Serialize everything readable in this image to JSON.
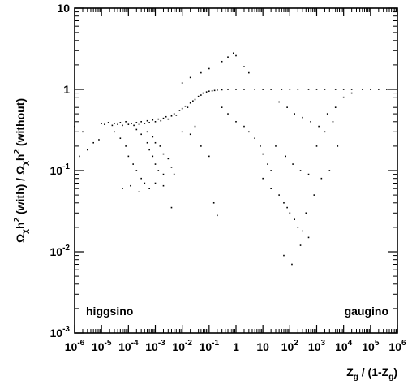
{
  "chart_data": {
    "type": "scatter",
    "x_scale": "log",
    "y_scale": "log",
    "xlim": [
      1e-06,
      1000000.0
    ],
    "ylim": [
      0.001,
      10
    ],
    "grid": false,
    "x_ticks": [
      {
        "value": 1e-06,
        "base": "10",
        "exp": "-6"
      },
      {
        "value": 1e-05,
        "base": "10",
        "exp": "-5"
      },
      {
        "value": 0.0001,
        "base": "10",
        "exp": "-4"
      },
      {
        "value": 0.001,
        "base": "10",
        "exp": "-3"
      },
      {
        "value": 0.01,
        "base": "10",
        "exp": "-2"
      },
      {
        "value": 0.1,
        "base": "10",
        "exp": "-1"
      },
      {
        "value": 1,
        "base": "1",
        "exp": ""
      },
      {
        "value": 10,
        "base": "10",
        "exp": ""
      },
      {
        "value": 100,
        "base": "10",
        "exp": "2"
      },
      {
        "value": 1000,
        "base": "10",
        "exp": "3"
      },
      {
        "value": 10000,
        "base": "10",
        "exp": "4"
      },
      {
        "value": 100000,
        "base": "10",
        "exp": "5"
      },
      {
        "value": 1000000,
        "base": "10",
        "exp": "6"
      }
    ],
    "y_ticks": [
      {
        "value": 0.001,
        "base": "10",
        "exp": "-3"
      },
      {
        "value": 0.01,
        "base": "10",
        "exp": "-2"
      },
      {
        "value": 0.1,
        "base": "10",
        "exp": "-1"
      },
      {
        "value": 1,
        "base": "1",
        "exp": ""
      },
      {
        "value": 10,
        "base": "10",
        "exp": ""
      }
    ],
    "xlabel": {
      "a": "Z",
      "a_sub": "g",
      "b": " / (1-Z",
      "b_sub": "g",
      "c": ")"
    },
    "ylabel": {
      "p1": "Ω",
      "p1_sub": "χ",
      "p2": "h",
      "p2_sup": "2",
      "p3": " (with) / Ω",
      "p3_sub": "χ",
      "p4": "h",
      "p4_sup": "2",
      "p5": " (without)"
    },
    "annotations": {
      "left": "higgsino",
      "right": "gaugino"
    },
    "colors": {
      "points": "#000000",
      "frame": "#000000"
    },
    "points": [
      [
        1e-05,
        0.38
      ],
      [
        1.3e-05,
        0.37
      ],
      [
        1.8e-05,
        0.39
      ],
      [
        2.5e-05,
        0.36
      ],
      [
        3e-05,
        0.38
      ],
      [
        4e-05,
        0.37
      ],
      [
        5e-05,
        0.39
      ],
      [
        6e-05,
        0.36
      ],
      [
        8e-05,
        0.4
      ],
      [
        0.0001,
        0.37
      ],
      [
        0.00013,
        0.38
      ],
      [
        0.00016,
        0.36
      ],
      [
        0.0002,
        0.39
      ],
      [
        0.00025,
        0.37
      ],
      [
        0.0003,
        0.4
      ],
      [
        0.0004,
        0.38
      ],
      [
        0.0005,
        0.41
      ],
      [
        0.0006,
        0.39
      ],
      [
        0.0008,
        0.42
      ],
      [
        0.001,
        0.4
      ],
      [
        0.0013,
        0.43
      ],
      [
        0.0016,
        0.41
      ],
      [
        0.002,
        0.44
      ],
      [
        0.0025,
        0.46
      ],
      [
        0.003,
        0.43
      ],
      [
        0.004,
        0.47
      ],
      [
        0.005,
        0.5
      ],
      [
        0.006,
        0.48
      ],
      [
        0.008,
        0.55
      ],
      [
        0.01,
        0.58
      ],
      [
        0.013,
        0.62
      ],
      [
        0.016,
        0.6
      ],
      [
        0.02,
        0.68
      ],
      [
        0.025,
        0.72
      ],
      [
        0.03,
        0.75
      ],
      [
        0.04,
        0.82
      ],
      [
        0.05,
        0.85
      ],
      [
        0.06,
        0.9
      ],
      [
        0.08,
        0.93
      ],
      [
        0.1,
        0.95
      ],
      [
        0.13,
        0.96
      ],
      [
        0.16,
        0.97
      ],
      [
        0.2,
        0.98
      ],
      [
        0.3,
        0.99
      ],
      [
        0.5,
        1
      ],
      [
        1,
        1
      ],
      [
        2,
        1
      ],
      [
        5,
        1
      ],
      [
        10,
        1
      ],
      [
        20,
        1
      ],
      [
        50,
        1
      ],
      [
        100,
        1
      ],
      [
        200,
        1
      ],
      [
        500,
        1
      ],
      [
        1000,
        1
      ],
      [
        2000,
        1
      ],
      [
        5000,
        1
      ],
      [
        10000,
        1
      ],
      [
        20000,
        1
      ],
      [
        50000,
        1
      ],
      [
        100000,
        1
      ],
      [
        200000,
        1
      ],
      [
        400000,
        1
      ],
      [
        3e-05,
        0.3
      ],
      [
        5e-05,
        0.25
      ],
      [
        8e-05,
        0.2
      ],
      [
        0.0001,
        0.15
      ],
      [
        0.00015,
        0.12
      ],
      [
        0.0002,
        0.1
      ],
      [
        0.0003,
        0.08
      ],
      [
        0.0004,
        0.07
      ],
      [
        0.0002,
        0.32
      ],
      [
        0.0003,
        0.28
      ],
      [
        0.0005,
        0.22
      ],
      [
        0.0006,
        0.18
      ],
      [
        0.0008,
        0.15
      ],
      [
        0.001,
        0.12
      ],
      [
        0.0013,
        0.1
      ],
      [
        0.002,
        0.09
      ],
      [
        0.0005,
        0.3
      ],
      [
        0.0008,
        0.26
      ],
      [
        0.001,
        0.22
      ],
      [
        0.0015,
        0.2
      ],
      [
        0.002,
        0.16
      ],
      [
        0.003,
        0.14
      ],
      [
        0.004,
        0.11
      ],
      [
        0.005,
        0.09
      ],
      [
        6e-05,
        0.06
      ],
      [
        0.00012,
        0.065
      ],
      [
        0.00025,
        0.055
      ],
      [
        0.0006,
        0.06
      ],
      [
        0.001,
        0.07
      ],
      [
        0.002,
        0.065
      ],
      [
        0.004,
        0.035
      ],
      [
        0.01,
        0.3
      ],
      [
        0.02,
        0.28
      ],
      [
        0.03,
        0.35
      ],
      [
        0.05,
        0.2
      ],
      [
        0.1,
        0.15
      ],
      [
        0.15,
        0.04
      ],
      [
        0.2,
        0.028
      ],
      [
        0.01,
        1.2
      ],
      [
        0.02,
        1.4
      ],
      [
        0.05,
        1.6
      ],
      [
        0.1,
        1.8
      ],
      [
        0.3,
        2.2
      ],
      [
        0.5,
        2.5
      ],
      [
        0.8,
        2.8
      ],
      [
        1,
        2.6
      ],
      [
        2,
        1.9
      ],
      [
        3,
        1.6
      ],
      [
        0.3,
        0.6
      ],
      [
        0.5,
        0.5
      ],
      [
        1,
        0.4
      ],
      [
        2,
        0.35
      ],
      [
        3,
        0.3
      ],
      [
        5,
        0.25
      ],
      [
        8,
        0.2
      ],
      [
        10,
        0.16
      ],
      [
        15,
        0.12
      ],
      [
        20,
        0.1
      ],
      [
        10,
        0.08
      ],
      [
        20,
        0.06
      ],
      [
        40,
        0.05
      ],
      [
        60,
        0.04
      ],
      [
        80,
        0.035
      ],
      [
        100,
        0.03
      ],
      [
        150,
        0.025
      ],
      [
        200,
        0.02
      ],
      [
        300,
        0.018
      ],
      [
        500,
        0.015
      ],
      [
        60,
        0.009
      ],
      [
        120,
        0.007
      ],
      [
        250,
        0.012
      ],
      [
        400,
        0.03
      ],
      [
        800,
        0.05
      ],
      [
        1500,
        0.08
      ],
      [
        3000,
        0.1
      ],
      [
        6000,
        0.2
      ],
      [
        1e-06,
        0.35
      ],
      [
        2e-06,
        0.3
      ],
      [
        1.5e-06,
        0.15
      ],
      [
        3e-06,
        0.18
      ],
      [
        5e-06,
        0.22
      ],
      [
        8e-06,
        0.24
      ],
      [
        40,
        0.7
      ],
      [
        80,
        0.6
      ],
      [
        150,
        0.5
      ],
      [
        300,
        0.45
      ],
      [
        600,
        0.4
      ],
      [
        1200,
        0.35
      ],
      [
        2500,
        0.5
      ],
      [
        5000,
        0.6
      ],
      [
        10000,
        0.8
      ],
      [
        20000,
        0.9
      ],
      [
        30,
        0.2
      ],
      [
        70,
        0.15
      ],
      [
        130,
        0.12
      ],
      [
        250,
        0.1
      ],
      [
        500,
        0.09
      ],
      [
        1000,
        0.2
      ],
      [
        2000,
        0.3
      ],
      [
        4000,
        0.4
      ]
    ]
  }
}
